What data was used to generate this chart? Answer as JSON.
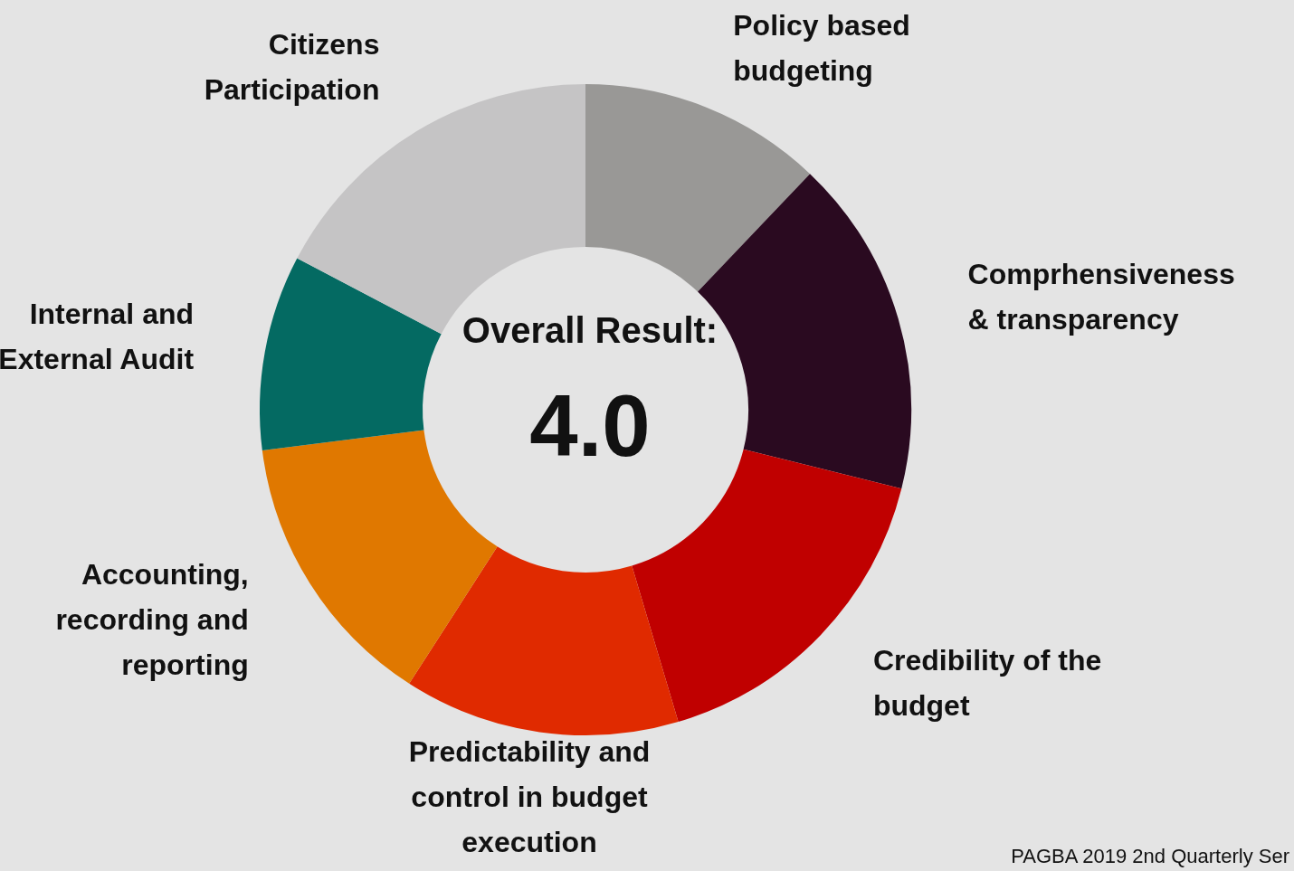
{
  "chart_data": {
    "type": "donut",
    "categories": [
      "Policy based budgeting",
      "Comprhensiveness & transparency",
      "Credibility of the budget",
      "Predictability and control in budget execution",
      "Accounting, recording and reporting",
      "Internal and External Audit",
      "Citizens Participation"
    ],
    "values": [
      12.1,
      16.8,
      16.5,
      13.7,
      13.9,
      9.7,
      17.3
    ],
    "colors": [
      "#999896",
      "#2a0a20",
      "#c00000",
      "#e02a00",
      "#e07800",
      "#046a62",
      "#c5c4c5"
    ],
    "annotations": [
      "Overall Result:",
      "4.0",
      "PAGBA 2019 2nd Quarterly Ser"
    ],
    "legend": false
  }
}
